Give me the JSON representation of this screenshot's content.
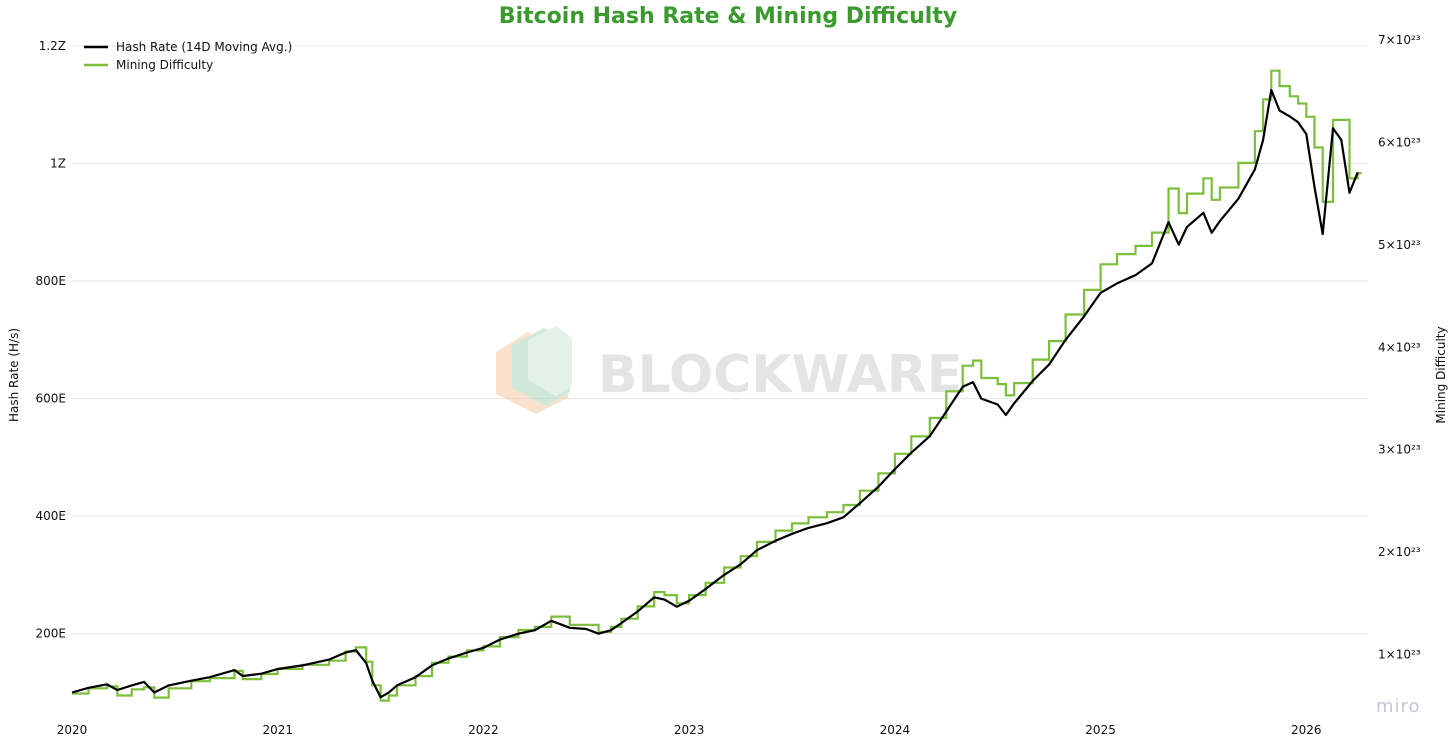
{
  "chart_data": {
    "type": "line",
    "title": "Bitcoin Hash Rate & Mining Difficulty",
    "title_color": "#3a9a2e",
    "ylabel_left": "Hash Rate (H/s)",
    "ylabel_right": "Mining Difficulty",
    "y_left_ticks": [
      {
        "v": 200,
        "label": "200E"
      },
      {
        "v": 400,
        "label": "400E"
      },
      {
        "v": 600,
        "label": "600E"
      },
      {
        "v": 800,
        "label": "800E"
      },
      {
        "v": 1000,
        "label": "1Z"
      },
      {
        "v": 1200,
        "label": "1.2Z"
      }
    ],
    "y_right_ticks": [
      {
        "v": 1,
        "label": "1×10²³"
      },
      {
        "v": 2,
        "label": "2×10²³"
      },
      {
        "v": 3,
        "label": "3×10²³"
      },
      {
        "v": 4,
        "label": "4×10²³"
      },
      {
        "v": 5,
        "label": "5×10²³"
      },
      {
        "v": 6,
        "label": "6×10²³"
      },
      {
        "v": 7,
        "label": "7×10²³"
      }
    ],
    "x_ticks": [
      "2020",
      "2021",
      "2022",
      "2023",
      "2024",
      "2025",
      "2026"
    ],
    "xlim": [
      2020.0,
      2026.3
    ],
    "ylim_left": [
      60,
      1210
    ],
    "ylim_right": [
      0.4,
      7.0
    ],
    "grid": "horizontal",
    "legend_position": "top-left",
    "series": [
      {
        "name": "Hash Rate (14D Moving Avg.)",
        "color": "#000000",
        "axis": "left",
        "points": [
          [
            2020.0,
            100
          ],
          [
            2020.08,
            108
          ],
          [
            2020.17,
            114
          ],
          [
            2020.22,
            104
          ],
          [
            2020.29,
            112
          ],
          [
            2020.35,
            118
          ],
          [
            2020.4,
            100
          ],
          [
            2020.47,
            112
          ],
          [
            2020.58,
            120
          ],
          [
            2020.67,
            126
          ],
          [
            2020.79,
            138
          ],
          [
            2020.83,
            128
          ],
          [
            2020.92,
            132
          ],
          [
            2021.0,
            140
          ],
          [
            2021.12,
            146
          ],
          [
            2021.25,
            156
          ],
          [
            2021.33,
            168
          ],
          [
            2021.38,
            172
          ],
          [
            2021.43,
            150
          ],
          [
            2021.46,
            120
          ],
          [
            2021.5,
            92
          ],
          [
            2021.54,
            100
          ],
          [
            2021.58,
            112
          ],
          [
            2021.67,
            126
          ],
          [
            2021.75,
            146
          ],
          [
            2021.83,
            158
          ],
          [
            2021.92,
            168
          ],
          [
            2022.0,
            176
          ],
          [
            2022.08,
            190
          ],
          [
            2022.17,
            200
          ],
          [
            2022.25,
            206
          ],
          [
            2022.33,
            222
          ],
          [
            2022.42,
            210
          ],
          [
            2022.5,
            208
          ],
          [
            2022.56,
            200
          ],
          [
            2022.62,
            206
          ],
          [
            2022.67,
            218
          ],
          [
            2022.75,
            238
          ],
          [
            2022.83,
            262
          ],
          [
            2022.88,
            258
          ],
          [
            2022.94,
            246
          ],
          [
            2023.0,
            256
          ],
          [
            2023.08,
            276
          ],
          [
            2023.17,
            300
          ],
          [
            2023.25,
            318
          ],
          [
            2023.33,
            342
          ],
          [
            2023.42,
            358
          ],
          [
            2023.5,
            370
          ],
          [
            2023.58,
            380
          ],
          [
            2023.67,
            388
          ],
          [
            2023.75,
            398
          ],
          [
            2023.83,
            422
          ],
          [
            2023.92,
            450
          ],
          [
            2024.0,
            480
          ],
          [
            2024.08,
            508
          ],
          [
            2024.17,
            536
          ],
          [
            2024.25,
            578
          ],
          [
            2024.33,
            620
          ],
          [
            2024.38,
            628
          ],
          [
            2024.42,
            600
          ],
          [
            2024.5,
            590
          ],
          [
            2024.54,
            572
          ],
          [
            2024.58,
            592
          ],
          [
            2024.67,
            630
          ],
          [
            2024.75,
            658
          ],
          [
            2024.83,
            700
          ],
          [
            2024.92,
            740
          ],
          [
            2025.0,
            780
          ],
          [
            2025.08,
            796
          ],
          [
            2025.17,
            810
          ],
          [
            2025.25,
            830
          ],
          [
            2025.33,
            900
          ],
          [
            2025.38,
            862
          ],
          [
            2025.42,
            892
          ],
          [
            2025.5,
            916
          ],
          [
            2025.54,
            882
          ],
          [
            2025.58,
            902
          ],
          [
            2025.67,
            940
          ],
          [
            2025.75,
            990
          ],
          [
            2025.79,
            1040
          ],
          [
            2025.83,
            1125
          ],
          [
            2025.87,
            1090
          ],
          [
            2025.92,
            1080
          ],
          [
            2025.96,
            1070
          ],
          [
            2026.0,
            1050
          ],
          [
            2026.04,
            960
          ],
          [
            2026.08,
            880
          ],
          [
            2026.13,
            1060
          ],
          [
            2026.17,
            1040
          ],
          [
            2026.21,
            950
          ],
          [
            2026.25,
            985
          ]
        ]
      },
      {
        "name": "Mining Difficulty",
        "color": "#7cbf3a",
        "axis": "right",
        "steps": [
          [
            2020.0,
            0.62
          ],
          [
            2020.08,
            0.67
          ],
          [
            2020.17,
            0.69
          ],
          [
            2020.22,
            0.6
          ],
          [
            2020.29,
            0.66
          ],
          [
            2020.35,
            0.68
          ],
          [
            2020.4,
            0.58
          ],
          [
            2020.47,
            0.67
          ],
          [
            2020.58,
            0.74
          ],
          [
            2020.67,
            0.77
          ],
          [
            2020.79,
            0.84
          ],
          [
            2020.83,
            0.76
          ],
          [
            2020.92,
            0.81
          ],
          [
            2021.0,
            0.86
          ],
          [
            2021.12,
            0.9
          ],
          [
            2021.25,
            0.94
          ],
          [
            2021.33,
            1.03
          ],
          [
            2021.38,
            1.07
          ],
          [
            2021.43,
            0.93
          ],
          [
            2021.46,
            0.7
          ],
          [
            2021.5,
            0.55
          ],
          [
            2021.54,
            0.6
          ],
          [
            2021.58,
            0.7
          ],
          [
            2021.67,
            0.79
          ],
          [
            2021.75,
            0.92
          ],
          [
            2021.83,
            0.98
          ],
          [
            2021.92,
            1.04
          ],
          [
            2022.0,
            1.08
          ],
          [
            2022.08,
            1.17
          ],
          [
            2022.17,
            1.24
          ],
          [
            2022.25,
            1.27
          ],
          [
            2022.33,
            1.37
          ],
          [
            2022.42,
            1.29
          ],
          [
            2022.5,
            1.29
          ],
          [
            2022.56,
            1.22
          ],
          [
            2022.62,
            1.27
          ],
          [
            2022.67,
            1.35
          ],
          [
            2022.75,
            1.47
          ],
          [
            2022.83,
            1.61
          ],
          [
            2022.88,
            1.58
          ],
          [
            2022.94,
            1.5
          ],
          [
            2023.0,
            1.58
          ],
          [
            2023.08,
            1.7
          ],
          [
            2023.17,
            1.85
          ],
          [
            2023.25,
            1.96
          ],
          [
            2023.33,
            2.1
          ],
          [
            2023.42,
            2.21
          ],
          [
            2023.5,
            2.28
          ],
          [
            2023.58,
            2.34
          ],
          [
            2023.67,
            2.39
          ],
          [
            2023.75,
            2.46
          ],
          [
            2023.83,
            2.6
          ],
          [
            2023.92,
            2.77
          ],
          [
            2024.0,
            2.96
          ],
          [
            2024.08,
            3.13
          ],
          [
            2024.17,
            3.31
          ],
          [
            2024.25,
            3.57
          ],
          [
            2024.33,
            3.82
          ],
          [
            2024.38,
            3.87
          ],
          [
            2024.42,
            3.7
          ],
          [
            2024.5,
            3.64
          ],
          [
            2024.54,
            3.53
          ],
          [
            2024.58,
            3.65
          ],
          [
            2024.67,
            3.88
          ],
          [
            2024.75,
            4.06
          ],
          [
            2024.83,
            4.32
          ],
          [
            2024.92,
            4.56
          ],
          [
            2025.0,
            4.81
          ],
          [
            2025.08,
            4.91
          ],
          [
            2025.17,
            4.99
          ],
          [
            2025.25,
            5.12
          ],
          [
            2025.33,
            5.55
          ],
          [
            2025.38,
            5.31
          ],
          [
            2025.42,
            5.5
          ],
          [
            2025.5,
            5.65
          ],
          [
            2025.54,
            5.44
          ],
          [
            2025.58,
            5.56
          ],
          [
            2025.67,
            5.8
          ],
          [
            2025.75,
            6.11
          ],
          [
            2025.79,
            6.42
          ],
          [
            2025.83,
            6.7
          ],
          [
            2025.87,
            6.55
          ],
          [
            2025.92,
            6.45
          ],
          [
            2025.96,
            6.38
          ],
          [
            2026.0,
            6.25
          ],
          [
            2026.04,
            5.95
          ],
          [
            2026.08,
            5.42
          ],
          [
            2026.13,
            6.22
          ],
          [
            2026.17,
            6.22
          ],
          [
            2026.21,
            5.65
          ],
          [
            2026.25,
            5.7
          ]
        ]
      }
    ]
  },
  "watermark": {
    "text": "BLOCKWARE",
    "corner_text": "miro"
  }
}
